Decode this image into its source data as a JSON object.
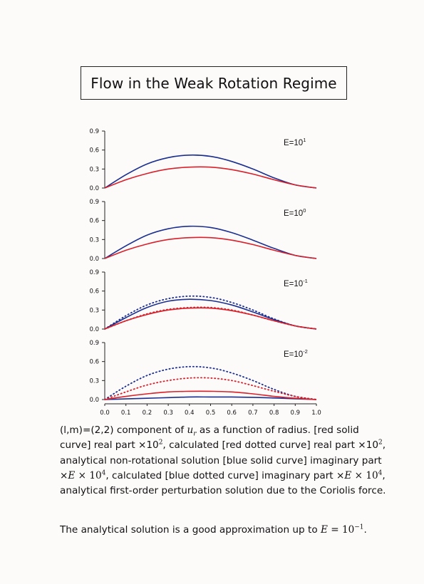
{
  "title": "Flow in the Weak Rotation Regime",
  "panel_labels": [
    {
      "base": "E=10",
      "exp": "1"
    },
    {
      "base": "E=10",
      "exp": "0"
    },
    {
      "base": "E=10",
      "exp": "-1"
    },
    {
      "base": "E=10",
      "exp": "-2"
    }
  ],
  "caption": {
    "l1_a": "(l,m)=(2,2) component of ",
    "l1_var": "u",
    "l1_sub": "r",
    "l1_b": " as a function of radius.  [red solid",
    "l2_a": "curve] real part ×10",
    "l2_exp": "2",
    "l2_b": ", calculated [red dotted curve] real part ×10",
    "l2_exp2": "2",
    "l2_c": ",",
    "l3": "analytical non-rotational solution [blue solid curve] imaginary part",
    "l4_a": "×",
    "l4_E": "E",
    "l4_b": " × 10",
    "l4_exp": "4",
    "l4_c": ", calculated [blue dotted curve] imaginary part ×",
    "l4_E2": "E",
    "l4_d": " × 10",
    "l4_exp2": "4",
    "l4_e": ",",
    "l5": "analytical first-order perturbation solution due to the Coriolis force."
  },
  "conclusion": {
    "a": "The analytical solution is a good approximation up to ",
    "E": "E",
    "b": " = 10",
    "exp": "−1",
    "c": "."
  },
  "chart_data": [
    {
      "type": "line",
      "panel": "E=10^1",
      "yticks": [
        "0.0",
        "0.3",
        "0.6",
        "0.9"
      ],
      "ylim": [
        0,
        0.9
      ],
      "xlim": [
        0,
        1.0
      ],
      "x": [
        0,
        0.1,
        0.2,
        0.3,
        0.4,
        0.5,
        0.6,
        0.7,
        0.8,
        0.9,
        1.0
      ],
      "series": [
        {
          "style": "solid",
          "color": "#1a2f8f",
          "values": [
            0.0,
            0.21,
            0.38,
            0.48,
            0.52,
            0.5,
            0.42,
            0.3,
            0.16,
            0.05,
            0.0
          ]
        },
        {
          "style": "solid",
          "color": "#d8202a",
          "values": [
            0.0,
            0.13,
            0.23,
            0.3,
            0.33,
            0.33,
            0.29,
            0.22,
            0.13,
            0.05,
            0.0
          ]
        }
      ]
    },
    {
      "type": "line",
      "panel": "E=10^0",
      "yticks": [
        "0.0",
        "0.3",
        "0.6",
        "0.9"
      ],
      "ylim": [
        0,
        0.9
      ],
      "xlim": [
        0,
        1.0
      ],
      "x": [
        0,
        0.1,
        0.2,
        0.3,
        0.4,
        0.5,
        0.6,
        0.7,
        0.8,
        0.9,
        1.0
      ],
      "series": [
        {
          "style": "solid",
          "color": "#1a2f8f",
          "values": [
            0.0,
            0.2,
            0.37,
            0.47,
            0.51,
            0.49,
            0.41,
            0.29,
            0.16,
            0.05,
            0.0
          ]
        },
        {
          "style": "solid",
          "color": "#d8202a",
          "values": [
            0.0,
            0.13,
            0.23,
            0.3,
            0.33,
            0.33,
            0.29,
            0.22,
            0.13,
            0.05,
            0.0
          ]
        }
      ]
    },
    {
      "type": "line",
      "panel": "E=10^-1",
      "yticks": [
        "0.0",
        "0.3",
        "0.6",
        "0.9"
      ],
      "ylim": [
        0,
        0.9
      ],
      "xlim": [
        0,
        1.0
      ],
      "x": [
        0,
        0.1,
        0.2,
        0.3,
        0.4,
        0.5,
        0.6,
        0.7,
        0.8,
        0.9,
        1.0
      ],
      "series": [
        {
          "style": "solid",
          "color": "#1a2f8f",
          "values": [
            0.0,
            0.18,
            0.34,
            0.44,
            0.47,
            0.45,
            0.38,
            0.27,
            0.15,
            0.05,
            0.0
          ]
        },
        {
          "style": "dotted",
          "color": "#1a2f8f",
          "values": [
            0.0,
            0.21,
            0.38,
            0.48,
            0.52,
            0.5,
            0.42,
            0.3,
            0.16,
            0.05,
            0.0
          ]
        },
        {
          "style": "solid",
          "color": "#d8202a",
          "values": [
            0.0,
            0.13,
            0.23,
            0.3,
            0.33,
            0.33,
            0.29,
            0.22,
            0.13,
            0.05,
            0.0
          ]
        },
        {
          "style": "dotted",
          "color": "#d8202a",
          "values": [
            0.0,
            0.13,
            0.24,
            0.31,
            0.34,
            0.34,
            0.3,
            0.22,
            0.13,
            0.05,
            0.0
          ]
        }
      ]
    },
    {
      "type": "line",
      "panel": "E=10^-2",
      "yticks": [
        "0.0",
        "0.3",
        "0.6",
        "0.9"
      ],
      "ylim": [
        0,
        0.9
      ],
      "xlim": [
        0,
        1.0
      ],
      "xticks": [
        "0.0",
        "0.1",
        "0.2",
        "0.3",
        "0.4",
        "0.5",
        "0.6",
        "0.7",
        "0.8",
        "0.9",
        "1.0"
      ],
      "x": [
        0,
        0.1,
        0.2,
        0.3,
        0.4,
        0.5,
        0.6,
        0.7,
        0.8,
        0.9,
        1.0
      ],
      "series": [
        {
          "style": "solid",
          "color": "#1a2f8f",
          "values": [
            0.0,
            0.01,
            0.02,
            0.03,
            0.04,
            0.04,
            0.04,
            0.035,
            0.025,
            0.012,
            0.0
          ]
        },
        {
          "style": "dotted",
          "color": "#1a2f8f",
          "values": [
            0.0,
            0.21,
            0.38,
            0.48,
            0.52,
            0.5,
            0.42,
            0.3,
            0.16,
            0.05,
            0.0
          ]
        },
        {
          "style": "solid",
          "color": "#d8202a",
          "values": [
            0.0,
            0.05,
            0.09,
            0.12,
            0.13,
            0.13,
            0.12,
            0.09,
            0.05,
            0.02,
            0.0
          ]
        },
        {
          "style": "dotted",
          "color": "#d8202a",
          "values": [
            0.0,
            0.12,
            0.23,
            0.3,
            0.34,
            0.34,
            0.3,
            0.22,
            0.13,
            0.05,
            0.0
          ]
        }
      ]
    }
  ]
}
